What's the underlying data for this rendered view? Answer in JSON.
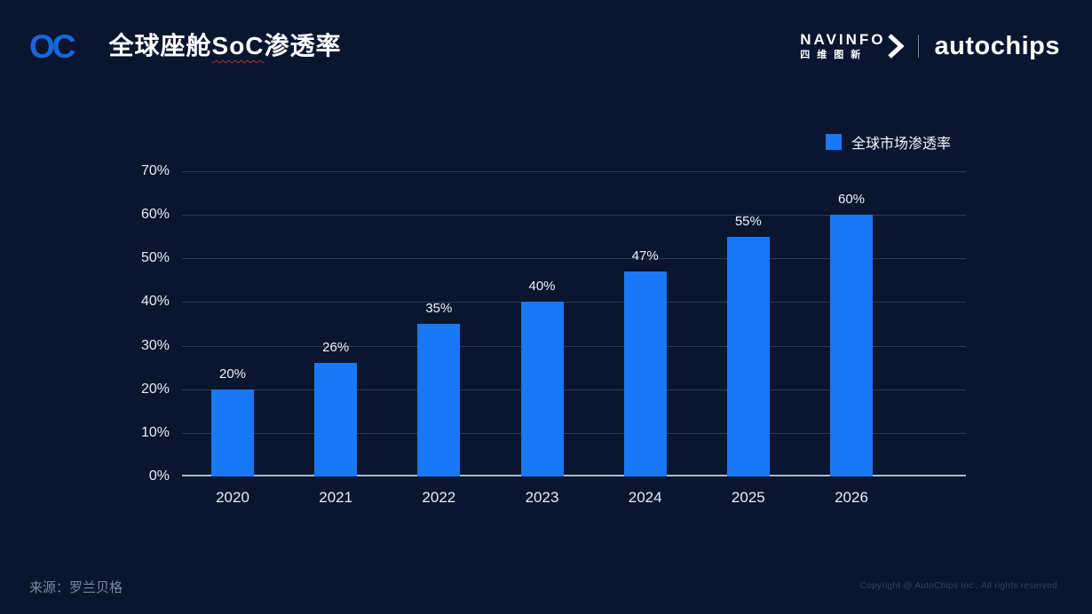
{
  "header": {
    "logo_text": "OC",
    "title": {
      "prefix": "全球座舱",
      "underlined": "SoC",
      "suffix": "渗透率"
    },
    "brand": {
      "navinfo_text": "NAVINFO",
      "navinfo_cn": "四维图新",
      "autochips_text": "autochips"
    }
  },
  "legend": {
    "label": "全球市场渗透率",
    "color": "#1978F5"
  },
  "chart_data": {
    "type": "bar",
    "title": "全球座舱SoC渗透率",
    "categories": [
      "2020",
      "2021",
      "2022",
      "2023",
      "2024",
      "2025",
      "2026"
    ],
    "values": [
      20,
      26,
      35,
      40,
      47,
      55,
      60
    ],
    "data_labels": [
      "20%",
      "26%",
      "35%",
      "40%",
      "47%",
      "55%",
      "60%"
    ],
    "legend_entries": [
      "全球市场渗透率"
    ],
    "legend_position": "top-right",
    "xlabel": "",
    "ylabel": "",
    "ylim": [
      0,
      70
    ],
    "yticks": [
      "0%",
      "10%",
      "20%",
      "30%",
      "40%",
      "50%",
      "60%",
      "70%"
    ],
    "grid": true,
    "bar_color": "#1978F5",
    "background_color": "#0A1530"
  },
  "footer": {
    "source": "来源：罗兰贝格",
    "copyright": "Copyright @ AutoChips Inc . All rights reserved."
  }
}
